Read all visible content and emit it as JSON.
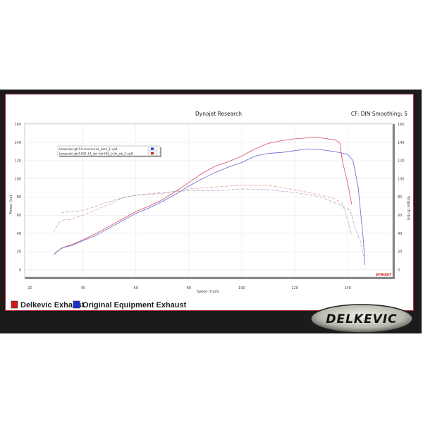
{
  "header": {
    "title": "Dynojet Research",
    "settings": "CF: DIN Smoothing: 5"
  },
  "legend_bottom": [
    {
      "label": "Delkevic Exhaust",
      "color": "#d01818"
    },
    {
      "label": "Original Equipment Exhaust",
      "color": "#1a2fd0"
    }
  ],
  "logo": {
    "text": "DELKEVIC"
  },
  "watermark": "DYNOJET",
  "chart_data": {
    "type": "line",
    "title": "Dynojet Research",
    "xlabel": "Speed (mph)",
    "ylabel": "Power (hp)",
    "y2label": "Torque (ft-lbs)",
    "xlim": [
      18,
      157
    ],
    "ylim": [
      -8,
      161
    ],
    "y2lim": [
      -8,
      161
    ],
    "xticks": [
      20,
      40,
      60,
      80,
      100,
      120,
      140
    ],
    "yticks": [
      0,
      20,
      40,
      60,
      80,
      100,
      120,
      140,
      160
    ],
    "grid": true,
    "legend": {
      "placement": "top-left",
      "entries": [
        {
          "label": "kawasaki-gtr14-concourse_oem_1.vp8",
          "color": "#1a2fd0"
        },
        {
          "label": "kawasaki-gtr1400-14_del-hdr-f62_tv3s_nb_3.vp8",
          "color": "#d01818"
        }
      ]
    },
    "series": [
      {
        "name": "Delkevic Exhaust",
        "measure": "power",
        "color": "#d95060",
        "dashed": false,
        "points": [
          [
            29,
            17
          ],
          [
            31,
            22
          ],
          [
            33,
            25
          ],
          [
            36,
            28
          ],
          [
            40,
            33
          ],
          [
            45,
            40
          ],
          [
            50,
            48
          ],
          [
            55,
            56
          ],
          [
            60,
            64
          ],
          [
            65,
            70
          ],
          [
            70,
            77
          ],
          [
            75,
            86
          ],
          [
            80,
            96
          ],
          [
            85,
            106
          ],
          [
            90,
            114
          ],
          [
            95,
            119
          ],
          [
            100,
            125
          ],
          [
            105,
            133
          ],
          [
            110,
            139
          ],
          [
            115,
            142
          ],
          [
            120,
            144
          ],
          [
            125,
            145
          ],
          [
            128,
            146
          ],
          [
            130,
            145
          ],
          [
            135,
            143
          ],
          [
            137,
            140
          ],
          [
            138,
            120
          ],
          [
            140,
            95
          ],
          [
            141,
            80
          ],
          [
            141.5,
            72
          ]
        ]
      },
      {
        "name": "Original Equipment Exhaust",
        "measure": "power",
        "color": "#6a62c8",
        "dashed": false,
        "points": [
          [
            29,
            17
          ],
          [
            32,
            24
          ],
          [
            36,
            27
          ],
          [
            40,
            32
          ],
          [
            45,
            38
          ],
          [
            50,
            46
          ],
          [
            55,
            54
          ],
          [
            60,
            62
          ],
          [
            65,
            68
          ],
          [
            70,
            75
          ],
          [
            75,
            83
          ],
          [
            80,
            92
          ],
          [
            85,
            100
          ],
          [
            90,
            107
          ],
          [
            95,
            113
          ],
          [
            100,
            118
          ],
          [
            105,
            125
          ],
          [
            110,
            128
          ],
          [
            115,
            129
          ],
          [
            120,
            131
          ],
          [
            125,
            133
          ],
          [
            130,
            132
          ],
          [
            135,
            130
          ],
          [
            140,
            127
          ],
          [
            142,
            120
          ],
          [
            144,
            90
          ],
          [
            145,
            60
          ],
          [
            146,
            30
          ],
          [
            146.5,
            5
          ]
        ]
      },
      {
        "name": "Delkevic Exhaust",
        "measure": "torque",
        "color": "#d88a95",
        "dashed": true,
        "points": [
          [
            29,
            42
          ],
          [
            31,
            52
          ],
          [
            33,
            55
          ],
          [
            35,
            55
          ],
          [
            40,
            60
          ],
          [
            45,
            66
          ],
          [
            50,
            72
          ],
          [
            55,
            79
          ],
          [
            60,
            82
          ],
          [
            70,
            84
          ],
          [
            80,
            89
          ],
          [
            90,
            91
          ],
          [
            100,
            93
          ],
          [
            110,
            93
          ],
          [
            120,
            88
          ],
          [
            130,
            82
          ],
          [
            135,
            78
          ],
          [
            138,
            73
          ],
          [
            140,
            55
          ],
          [
            141.5,
            38
          ]
        ]
      },
      {
        "name": "Original Equipment Exhaust",
        "measure": "torque",
        "color": "#9a95c8",
        "dashed": true,
        "points": [
          [
            32,
            63
          ],
          [
            40,
            65
          ],
          [
            50,
            75
          ],
          [
            55,
            79
          ],
          [
            60,
            82
          ],
          [
            70,
            85
          ],
          [
            80,
            87
          ],
          [
            90,
            87
          ],
          [
            100,
            89
          ],
          [
            110,
            88
          ],
          [
            120,
            85
          ],
          [
            130,
            80
          ],
          [
            138,
            70
          ],
          [
            141,
            65
          ],
          [
            143,
            45
          ],
          [
            145,
            30
          ],
          [
            146,
            15
          ]
        ]
      }
    ]
  }
}
